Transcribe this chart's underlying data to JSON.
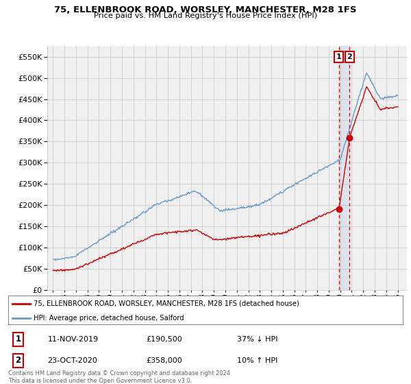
{
  "title": "75, ELLENBROOK ROAD, WORSLEY, MANCHESTER, M28 1FS",
  "subtitle": "Price paid vs. HM Land Registry's House Price Index (HPI)",
  "legend_line1": "75, ELLENBROOK ROAD, WORSLEY, MANCHESTER, M28 1FS (detached house)",
  "legend_line2": "HPI: Average price, detached house, Salford",
  "transaction1_date": "11-NOV-2019",
  "transaction1_price": "£190,500",
  "transaction1_hpi": "37% ↓ HPI",
  "transaction2_date": "23-OCT-2020",
  "transaction2_price": "£358,000",
  "transaction2_hpi": "10% ↑ HPI",
  "footer": "Contains HM Land Registry data © Crown copyright and database right 2024.\nThis data is licensed under the Open Government Licence v3.0.",
  "ylim": [
    0,
    575000
  ],
  "yticks": [
    0,
    50000,
    100000,
    150000,
    200000,
    250000,
    300000,
    350000,
    400000,
    450000,
    500000,
    550000
  ],
  "hpi_color": "#6699cc",
  "price_color": "#cc0000",
  "background_color": "#ffffff",
  "plot_bg_color": "#f0f0f0",
  "grid_color": "#cccccc",
  "marker1_x": 2019.87,
  "marker2_x": 2020.82,
  "marker1_y": 190500,
  "marker2_y": 358000,
  "xlim_left": 1994.5,
  "xlim_right": 2025.8
}
